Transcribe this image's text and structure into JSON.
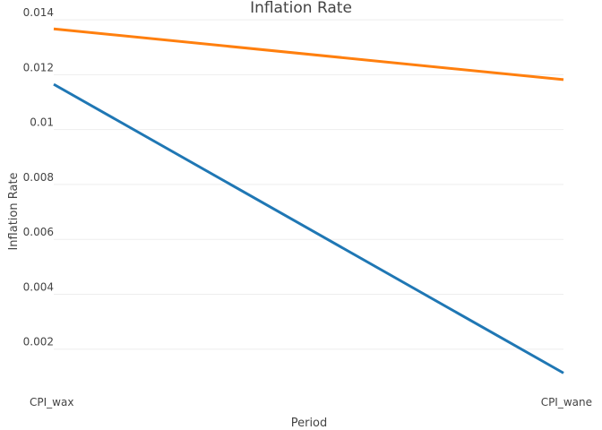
{
  "chart_data": {
    "type": "line",
    "title": "Inflation Rate",
    "xlabel": "Period",
    "ylabel": "Inflation Rate",
    "categories": [
      "CPI_wax",
      "CPI_wane"
    ],
    "y_ticks": [
      "0.002",
      "0.004",
      "0.006",
      "0.008",
      "0.01",
      "0.012",
      "0.014"
    ],
    "ylim": [
      0,
      0.0142
    ],
    "grid": true,
    "legend": false,
    "series": [
      {
        "values": [
          0.01165,
          0.00113
        ],
        "color": "#1f77b4"
      },
      {
        "values": [
          0.01367,
          0.01182
        ],
        "color": "#ff7f0e"
      }
    ]
  }
}
